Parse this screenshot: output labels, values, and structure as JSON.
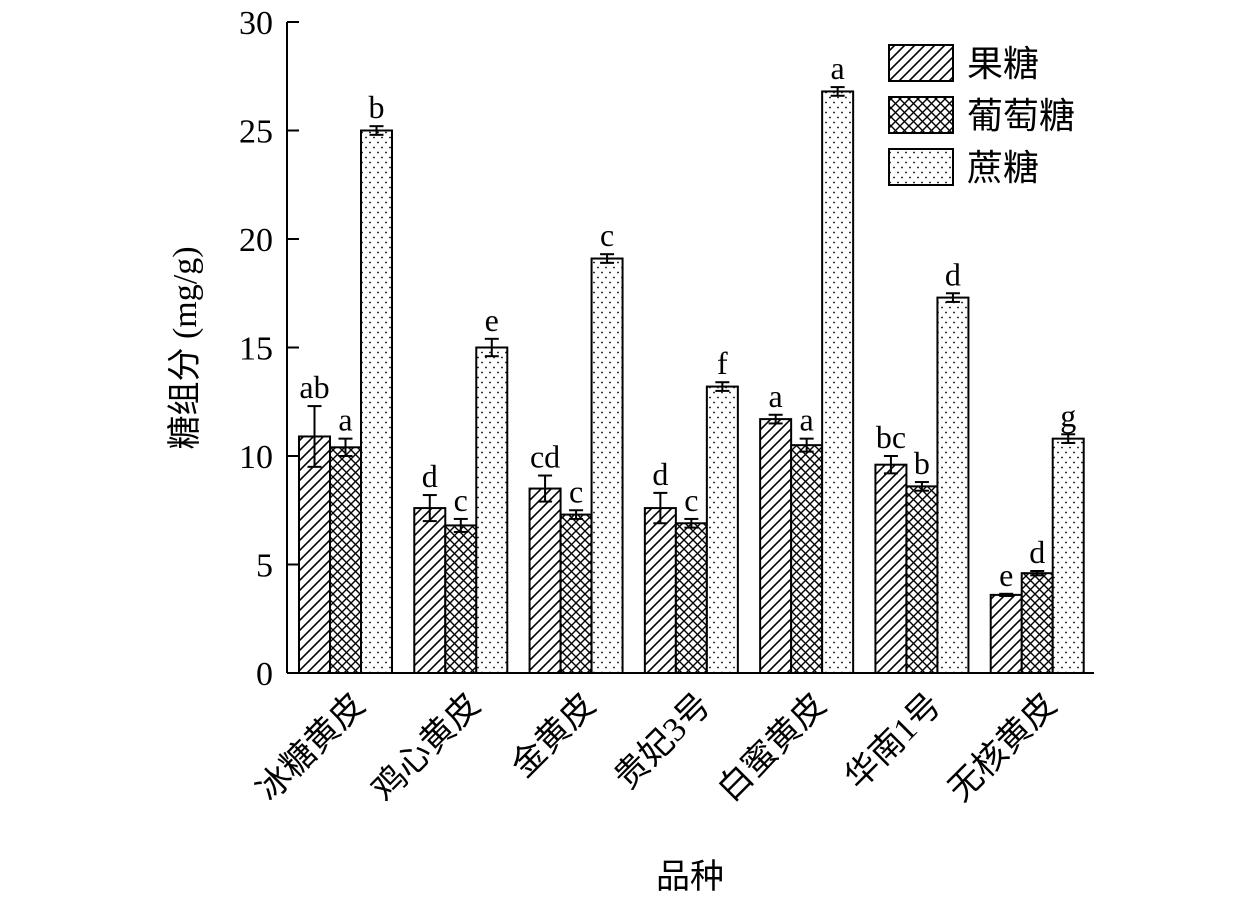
{
  "chart_data": {
    "type": "bar",
    "title": "",
    "xlabel": "品种",
    "ylabel": "糖组分 (mg/g)",
    "ylim": [
      0,
      30
    ],
    "yticks": [
      0,
      5,
      10,
      15,
      20,
      25,
      30
    ],
    "grid": false,
    "legend_position": "top-right",
    "categories": [
      "冰糖黄皮",
      "鸡心黄皮",
      "金黄皮",
      "贵妃3号",
      "白蜜黄皮",
      "华南1号",
      "无核黄皮"
    ],
    "series": [
      {
        "name": "果糖",
        "pattern": "diagonal-hatch",
        "values": [
          10.9,
          7.6,
          8.5,
          7.6,
          11.7,
          9.6,
          3.6
        ],
        "errors": [
          1.4,
          0.6,
          0.6,
          0.7,
          0.2,
          0.4,
          0.05
        ],
        "labels": [
          "ab",
          "d",
          "cd",
          "d",
          "a",
          "bc",
          "e"
        ]
      },
      {
        "name": "葡萄糖",
        "pattern": "crosshatch",
        "values": [
          10.4,
          6.8,
          7.3,
          6.9,
          10.5,
          8.6,
          4.6
        ],
        "errors": [
          0.4,
          0.3,
          0.2,
          0.2,
          0.3,
          0.2,
          0.1
        ],
        "labels": [
          "a",
          "c",
          "c",
          "c",
          "a",
          "b",
          "d"
        ]
      },
      {
        "name": "蔗糖",
        "pattern": "dots",
        "values": [
          25.0,
          15.0,
          19.1,
          13.2,
          26.8,
          17.3,
          10.8
        ],
        "errors": [
          0.2,
          0.4,
          0.2,
          0.2,
          0.2,
          0.2,
          0.2
        ],
        "labels": [
          "b",
          "e",
          "c",
          "f",
          "a",
          "d",
          "g"
        ]
      }
    ]
  }
}
